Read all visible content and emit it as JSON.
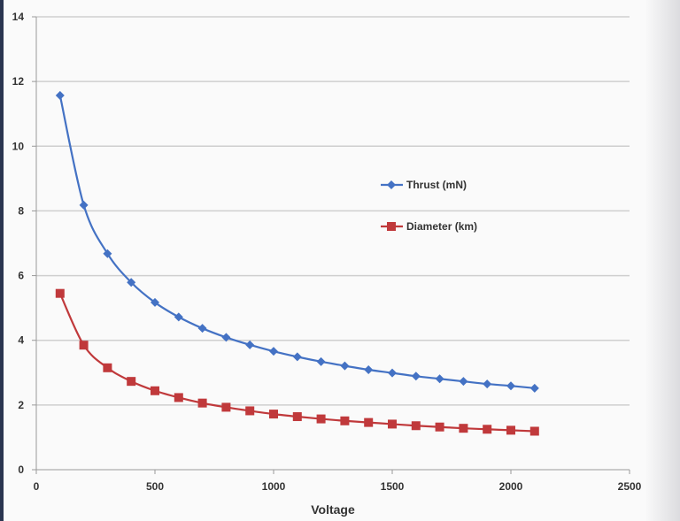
{
  "chart_data": {
    "type": "line",
    "title": "",
    "xlabel": "Voltage",
    "ylabel": "",
    "xlim": [
      0,
      2500
    ],
    "ylim": [
      0,
      14
    ],
    "xticks": [
      0,
      500,
      1000,
      1500,
      2000,
      2500
    ],
    "yticks": [
      0,
      2,
      4,
      6,
      8,
      10,
      12,
      14
    ],
    "grid": "horizontal",
    "legend_position": "center-right",
    "smooth": true,
    "x": [
      100,
      200,
      300,
      400,
      500,
      600,
      700,
      800,
      900,
      1000,
      1100,
      1200,
      1300,
      1400,
      1500,
      1600,
      1700,
      1800,
      1900,
      2000,
      2100
    ],
    "series": [
      {
        "name": "Thrust (mN)",
        "color": "#4472c4",
        "marker": "diamond",
        "values": [
          11.57,
          8.18,
          6.68,
          5.79,
          5.17,
          4.72,
          4.37,
          4.09,
          3.86,
          3.66,
          3.49,
          3.34,
          3.21,
          3.09,
          2.99,
          2.89,
          2.81,
          2.73,
          2.65,
          2.59,
          2.52
        ]
      },
      {
        "name": "Diameter (km)",
        "color": "#c0393b",
        "marker": "square",
        "values": [
          5.45,
          3.85,
          3.15,
          2.73,
          2.44,
          2.23,
          2.06,
          1.93,
          1.82,
          1.72,
          1.64,
          1.57,
          1.51,
          1.46,
          1.41,
          1.36,
          1.32,
          1.28,
          1.25,
          1.22,
          1.19
        ]
      }
    ]
  }
}
